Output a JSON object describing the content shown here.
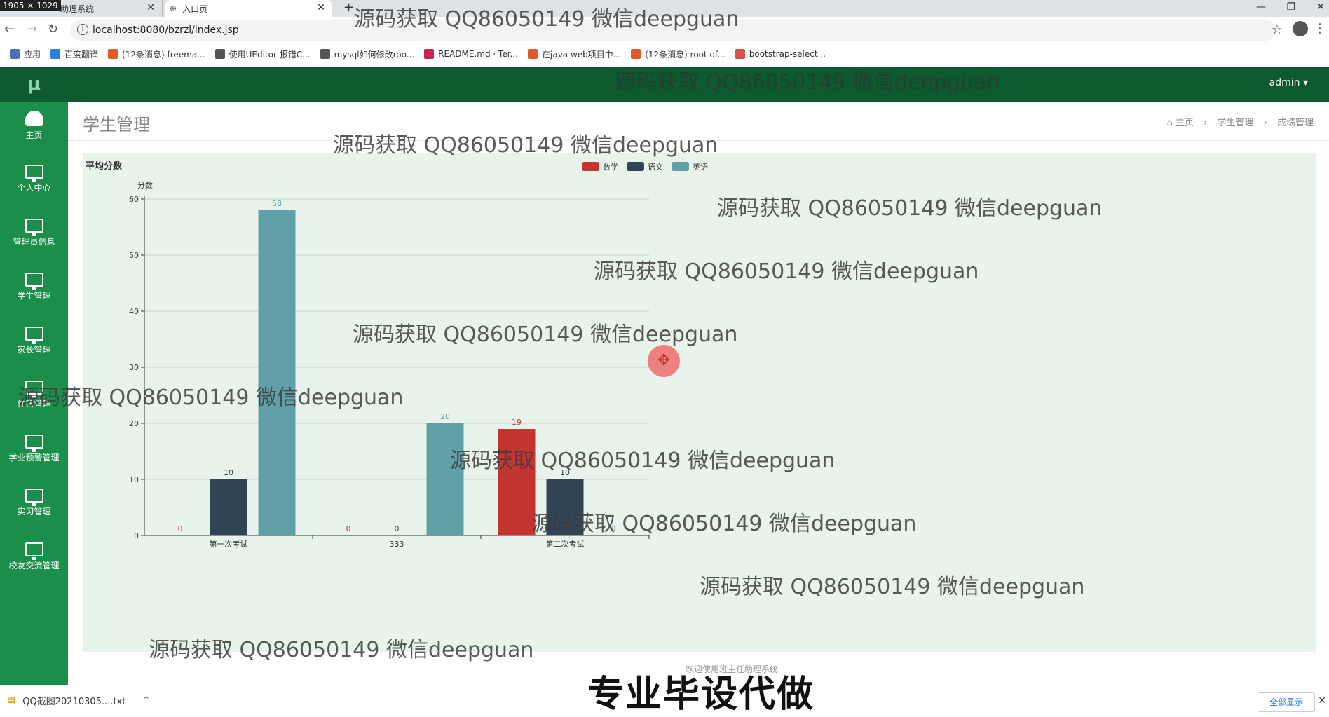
{
  "browser": {
    "size_badge": "1905 × 1029",
    "tabs": [
      {
        "label": "助理系统"
      },
      {
        "label": "入口页"
      }
    ],
    "url": "localhost:8080/bzrzl/index.jsp",
    "bookmarks": [
      {
        "label": "应用",
        "color": "#4a6fb5"
      },
      {
        "label": "百度翻译",
        "color": "#2f7fe0"
      },
      {
        "label": "(12条消息) freema...",
        "color": "#e25a2b"
      },
      {
        "label": "使用UEditor 报错C...",
        "color": "#555555"
      },
      {
        "label": "mysql如何修改roo...",
        "color": "#555555"
      },
      {
        "label": "README.md · Ter...",
        "color": "#c7254e"
      },
      {
        "label": "在java web项目中...",
        "color": "#e25a2b"
      },
      {
        "label": "(12条消息) root of...",
        "color": "#e25a2b"
      },
      {
        "label": "bootstrap-select...",
        "color": "#d9534f"
      }
    ]
  },
  "app": {
    "logo": "μ",
    "user": "admin ▾",
    "nav": [
      {
        "label": "主页",
        "icon": "dashboard-icon"
      },
      {
        "label": "个人中心",
        "icon": "monitor-icon"
      },
      {
        "label": "管理员信息",
        "icon": "monitor-icon"
      },
      {
        "label": "学生管理",
        "icon": "monitor-icon"
      },
      {
        "label": "家长管理",
        "icon": "monitor-icon"
      },
      {
        "label": "住宿管理",
        "icon": "monitor-icon"
      },
      {
        "label": "学业预警管理",
        "icon": "monitor-icon"
      },
      {
        "label": "实习管理",
        "icon": "monitor-icon"
      },
      {
        "label": "校友交流管理",
        "icon": "monitor-icon"
      }
    ],
    "page_title": "学生管理",
    "breadcrumb": {
      "home": "主页",
      "section": "学生管理",
      "current": "成绩管理"
    },
    "footer": "欢迎使用班主任助理系统"
  },
  "chart_data": {
    "type": "bar",
    "title": "平均分数",
    "ylabel": "分数",
    "xlabel": "",
    "categories": [
      "第一次考试",
      "333",
      "第二次考试"
    ],
    "series": [
      {
        "name": "数学",
        "color": "#c23531",
        "values": [
          0,
          0,
          19
        ]
      },
      {
        "name": "语文",
        "color": "#2f4554",
        "values": [
          10,
          0,
          10
        ]
      },
      {
        "name": "英语",
        "color": "#61a0a8",
        "values": [
          58,
          20,
          0
        ]
      }
    ],
    "ylim": [
      0,
      60
    ],
    "yticks": [
      0,
      10,
      20,
      30,
      40,
      50,
      60
    ],
    "legend": "top-center",
    "grid": true
  },
  "watermark": "源码获取 QQ86050149 微信deepguan",
  "stamp": "专业毕设代做",
  "downloads": {
    "file": "QQ截图20210305....txt",
    "show_all": "全部显示"
  }
}
